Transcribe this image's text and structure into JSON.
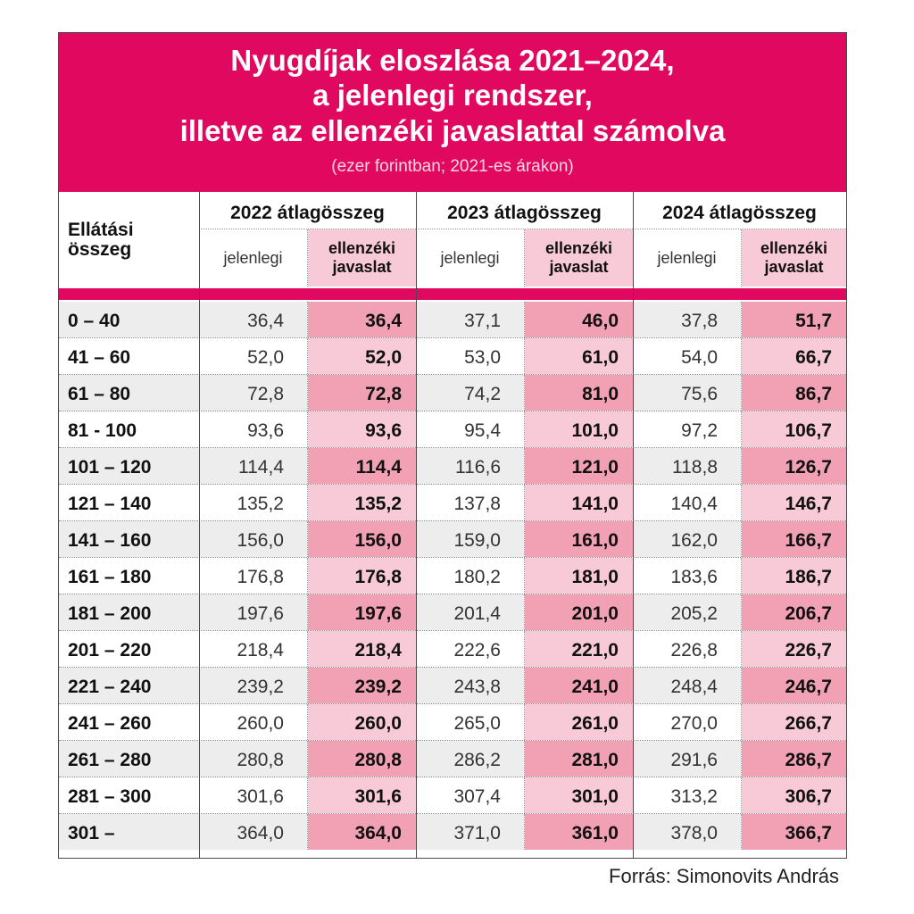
{
  "title_lines": [
    "Nyugdíjak eloszlása 2021–2024,",
    "a jelenlegi rendszer,",
    "illetve az ellenzéki javaslattal számolva"
  ],
  "subtitle": "(ezer forintban; 2021-es árakon)",
  "row_header": [
    "Ellátási",
    "összeg"
  ],
  "year_headers": [
    "2022 átlagösszeg",
    "2023 átlagösszeg",
    "2024 átlagösszeg"
  ],
  "sub_current": "jelenlegi",
  "sub_proposal": [
    "ellenzéki",
    "javaslat"
  ],
  "source": "Forrás: Simonovits András",
  "colors": {
    "accent": "#e0095f",
    "proposal_light": "#f8c9d6",
    "proposal_dark": "#f2a0b3",
    "shade": "#ededed"
  },
  "chart_data": {
    "type": "table",
    "title": "Nyugdíjak eloszlása 2021–2024, a jelenlegi rendszer, illetve az ellenzéki javaslattal számolva",
    "subtitle": "(ezer forintban; 2021-es árakon)",
    "columns": [
      "2022 jelenlegi",
      "2022 ellenzéki javaslat",
      "2023 jelenlegi",
      "2023 ellenzéki javaslat",
      "2024 jelenlegi",
      "2024 ellenzéki javaslat"
    ],
    "rows": [
      {
        "range": "0 – 40",
        "values": [
          "36,4",
          "36,4",
          "37,1",
          "46,0",
          "37,8",
          "51,7"
        ]
      },
      {
        "range": "41 – 60",
        "values": [
          "52,0",
          "52,0",
          "53,0",
          "61,0",
          "54,0",
          "66,7"
        ]
      },
      {
        "range": "61 – 80",
        "values": [
          "72,8",
          "72,8",
          "74,2",
          "81,0",
          "75,6",
          "86,7"
        ]
      },
      {
        "range": "81 - 100",
        "values": [
          "93,6",
          "93,6",
          "95,4",
          "101,0",
          "97,2",
          "106,7"
        ]
      },
      {
        "range": "101 – 120",
        "values": [
          "114,4",
          "114,4",
          "116,6",
          "121,0",
          "118,8",
          "126,7"
        ]
      },
      {
        "range": "121 – 140",
        "values": [
          "135,2",
          "135,2",
          "137,8",
          "141,0",
          "140,4",
          "146,7"
        ]
      },
      {
        "range": "141 – 160",
        "values": [
          "156,0",
          "156,0",
          "159,0",
          "161,0",
          "162,0",
          "166,7"
        ]
      },
      {
        "range": "161 – 180",
        "values": [
          "176,8",
          "176,8",
          "180,2",
          "181,0",
          "183,6",
          "186,7"
        ]
      },
      {
        "range": "181 – 200",
        "values": [
          "197,6",
          "197,6",
          "201,4",
          "201,0",
          "205,2",
          "206,7"
        ]
      },
      {
        "range": "201 – 220",
        "values": [
          "218,4",
          "218,4",
          "222,6",
          "221,0",
          "226,8",
          "226,7"
        ]
      },
      {
        "range": "221 – 240",
        "values": [
          "239,2",
          "239,2",
          "243,8",
          "241,0",
          "248,4",
          "246,7"
        ]
      },
      {
        "range": "241 – 260",
        "values": [
          "260,0",
          "260,0",
          "265,0",
          "261,0",
          "270,0",
          "266,7"
        ]
      },
      {
        "range": "261 – 280",
        "values": [
          "280,8",
          "280,8",
          "286,2",
          "281,0",
          "291,6",
          "286,7"
        ]
      },
      {
        "range": "281 – 300",
        "values": [
          "301,6",
          "301,6",
          "307,4",
          "301,0",
          "313,2",
          "306,7"
        ]
      },
      {
        "range": "301 –",
        "values": [
          "364,0",
          "364,0",
          "371,0",
          "361,0",
          "378,0",
          "366,7"
        ]
      }
    ]
  }
}
